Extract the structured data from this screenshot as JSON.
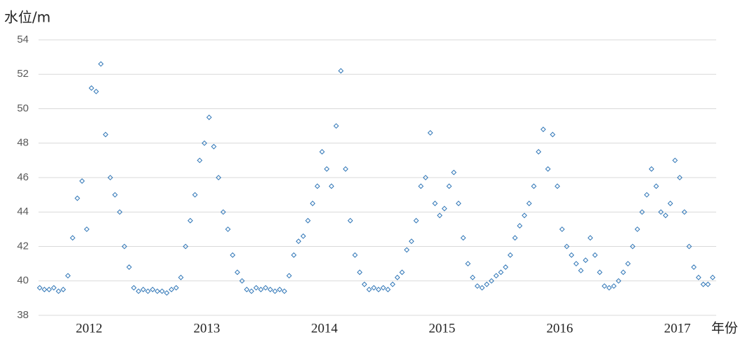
{
  "chart_data": {
    "type": "scatter",
    "y_label": "水位/m",
    "x_label": "年份",
    "xlim": [
      2011.57,
      2017.33
    ],
    "xticks": [
      2012,
      2013,
      2014,
      2015,
      2016,
      2017
    ],
    "ylim": [
      38,
      54
    ],
    "yticks": [
      38,
      40,
      42,
      44,
      46,
      48,
      50,
      52,
      54
    ],
    "grid": true,
    "color": "#2e75b6",
    "x": [
      2011.58,
      2011.62,
      2011.66,
      2011.7,
      2011.74,
      2011.78,
      2011.82,
      2011.86,
      2011.9,
      2011.94,
      2011.98,
      2012.02,
      2012.06,
      2012.1,
      2012.14,
      2012.18,
      2012.22,
      2012.26,
      2012.3,
      2012.34,
      2012.38,
      2012.42,
      2012.46,
      2012.5,
      2012.54,
      2012.58,
      2012.62,
      2012.66,
      2012.7,
      2012.74,
      2012.78,
      2012.82,
      2012.86,
      2012.9,
      2012.94,
      2012.98,
      2013.02,
      2013.06,
      2013.1,
      2013.14,
      2013.18,
      2013.22,
      2013.26,
      2013.3,
      2013.34,
      2013.38,
      2013.42,
      2013.46,
      2013.5,
      2013.54,
      2013.58,
      2013.62,
      2013.66,
      2013.7,
      2013.74,
      2013.78,
      2013.82,
      2013.86,
      2013.9,
      2013.94,
      2013.98,
      2014.02,
      2014.06,
      2014.1,
      2014.14,
      2014.18,
      2014.22,
      2014.26,
      2014.3,
      2014.34,
      2014.38,
      2014.42,
      2014.46,
      2014.5,
      2014.54,
      2014.58,
      2014.62,
      2014.66,
      2014.7,
      2014.74,
      2014.78,
      2014.82,
      2014.86,
      2014.9,
      2014.94,
      2014.98,
      2015.02,
      2015.06,
      2015.1,
      2015.14,
      2015.18,
      2015.22,
      2015.26,
      2015.3,
      2015.34,
      2015.38,
      2015.42,
      2015.46,
      2015.5,
      2015.54,
      2015.58,
      2015.62,
      2015.66,
      2015.7,
      2015.74,
      2015.78,
      2015.82,
      2015.86,
      2015.9,
      2015.94,
      2015.98,
      2016.02,
      2016.06,
      2016.1,
      2016.14,
      2016.18,
      2016.22,
      2016.26,
      2016.3,
      2016.34,
      2016.38,
      2016.42,
      2016.46,
      2016.5,
      2016.54,
      2016.58,
      2016.62,
      2016.66,
      2016.7,
      2016.74,
      2016.78,
      2016.82,
      2016.86,
      2016.9,
      2016.94,
      2016.98,
      2017.02,
      2017.06,
      2017.1,
      2017.14,
      2017.18,
      2017.22,
      2017.26,
      2017.3
    ],
    "values": [
      39.6,
      39.5,
      39.5,
      39.6,
      39.4,
      39.5,
      40.3,
      42.5,
      44.8,
      45.8,
      43.0,
      51.2,
      51.0,
      52.6,
      48.5,
      46.0,
      45.0,
      44.0,
      42.0,
      40.8,
      39.6,
      39.4,
      39.5,
      39.4,
      39.5,
      39.4,
      39.4,
      39.3,
      39.5,
      39.6,
      40.2,
      42.0,
      43.5,
      45.0,
      47.0,
      48.0,
      49.5,
      47.8,
      46.0,
      44.0,
      43.0,
      41.5,
      40.5,
      40.0,
      39.5,
      39.4,
      39.6,
      39.5,
      39.6,
      39.5,
      39.4,
      39.5,
      39.4,
      40.3,
      41.5,
      42.3,
      42.6,
      43.5,
      44.5,
      45.5,
      47.5,
      46.5,
      45.5,
      49.0,
      52.2,
      46.5,
      43.5,
      41.5,
      40.5,
      39.8,
      39.5,
      39.6,
      39.5,
      39.6,
      39.5,
      39.8,
      40.2,
      40.5,
      41.8,
      42.3,
      43.5,
      45.5,
      46.0,
      48.6,
      44.5,
      43.8,
      44.2,
      45.5,
      46.3,
      44.5,
      42.5,
      41.0,
      40.2,
      39.7,
      39.6,
      39.8,
      40.0,
      40.3,
      40.5,
      40.8,
      41.5,
      42.5,
      43.2,
      43.8,
      44.5,
      45.5,
      47.5,
      48.8,
      46.5,
      48.5,
      45.5,
      43.0,
      42.0,
      41.5,
      41.0,
      40.6,
      41.2,
      42.5,
      41.5,
      40.5,
      39.7,
      39.6,
      39.7,
      40.0,
      40.5,
      41.0,
      42.0,
      43.0,
      44.0,
      45.0,
      46.5,
      45.5,
      44.0,
      43.8,
      44.5,
      47.0,
      46.0,
      44.0,
      42.0,
      40.8,
      40.2,
      39.8,
      39.8,
      40.2
    ]
  }
}
